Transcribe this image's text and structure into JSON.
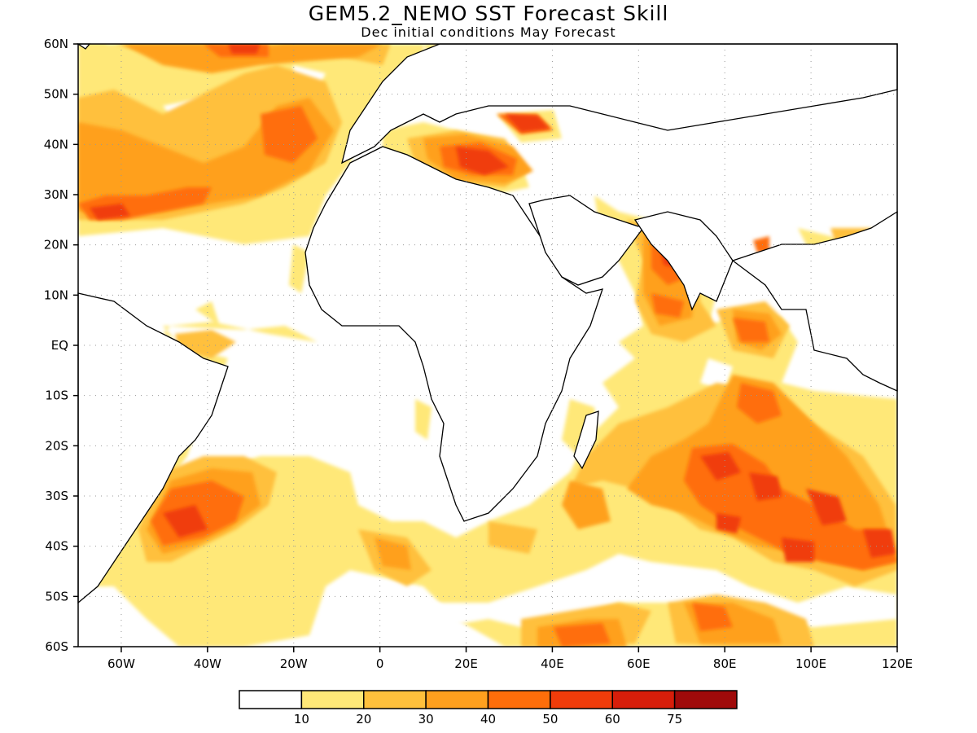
{
  "title": "GEM5.2_NEMO SST Forecast Skill",
  "subtitle": "Dec initial conditions  May Forecast",
  "lat_labels": [
    "60N",
    "50N",
    "40N",
    "30N",
    "20N",
    "10N",
    "EQ",
    "10S",
    "20S",
    "30S",
    "40S",
    "50S",
    "60S"
  ],
  "lon_labels": [
    "60W",
    "40W",
    "20W",
    "0",
    "20E",
    "40E",
    "60E",
    "80E",
    "100E",
    "120E"
  ],
  "colorbar": {
    "colors": [
      "#ffffff",
      "#ffe878",
      "#ffc03c",
      "#ffa01e",
      "#ff6e0a",
      "#f03c0a",
      "#d71e0a",
      "#a00a0a"
    ],
    "labels": [
      "10",
      "20",
      "30",
      "40",
      "50",
      "60",
      "75"
    ]
  },
  "map": {
    "lon_range": [
      -70,
      120
    ],
    "lat_range": [
      -60,
      60
    ]
  },
  "colors": {
    "land_outline": "#000000",
    "grid": "#999999"
  }
}
